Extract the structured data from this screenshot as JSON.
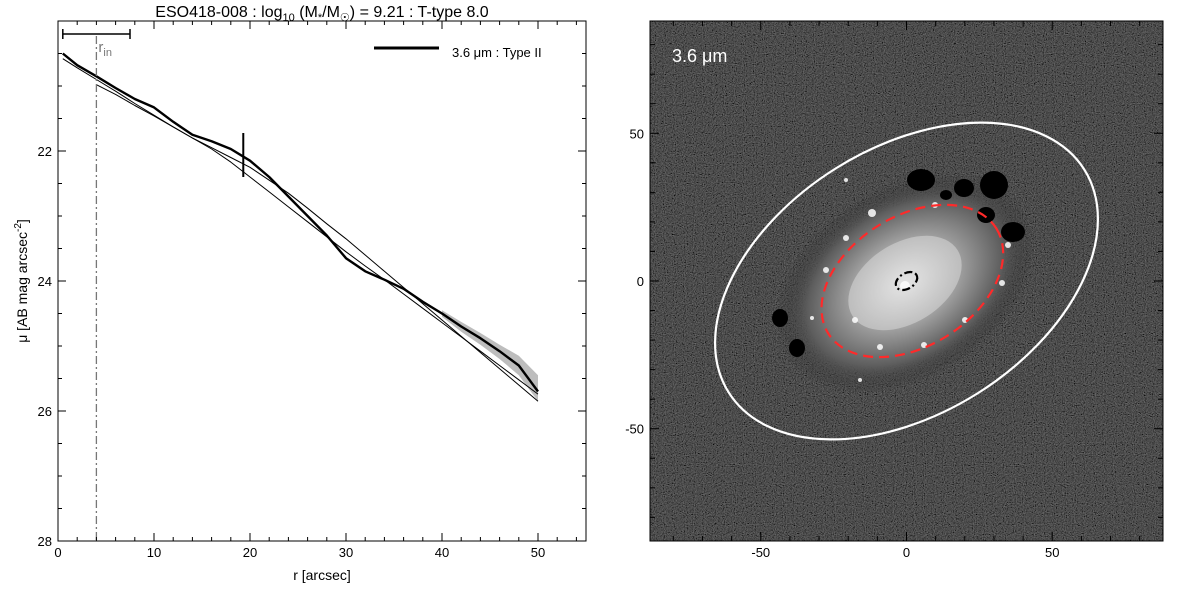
{
  "chart_data": [
    {
      "type": "line",
      "title": {
        "galaxy": "ESO418-008 : log",
        "sub10": "10",
        "mass_open": " (M",
        "mass_sub": "*",
        "slash": "/M",
        "sun_sub": "☉",
        "rest": ") = 9.21 : T-type 8.0"
      },
      "xlabel": "r [arcsec]",
      "ylabel": {
        "main": "μ [AB mag arcsec",
        "sup": "-2",
        "close": "]"
      },
      "xlim": [
        0,
        55
      ],
      "ylim": [
        28,
        20.0
      ],
      "y_inverted": true,
      "x_ticks": [
        0,
        10,
        20,
        30,
        40,
        50
      ],
      "y_ticks": [
        22,
        24,
        26,
        28
      ],
      "legend": {
        "label": "3.6 μm : Type II",
        "placement": "top-right"
      },
      "r_in": {
        "label": "r",
        "sub": "in",
        "value": 4.0,
        "bar_range": [
          0.5,
          7.5
        ]
      },
      "break_radius": 19.3,
      "series": [
        {
          "x": [
            0.5,
            2,
            4,
            6,
            8,
            10,
            12,
            14,
            16,
            18,
            20,
            22,
            24,
            26,
            28,
            30,
            32,
            34,
            36,
            38,
            40,
            42,
            44,
            46,
            48,
            50
          ],
          "y": [
            20.5,
            20.68,
            20.85,
            21.03,
            21.2,
            21.33,
            21.55,
            21.75,
            21.85,
            21.97,
            22.15,
            22.4,
            22.7,
            23.0,
            23.3,
            23.65,
            23.85,
            23.98,
            24.12,
            24.32,
            24.5,
            24.7,
            24.88,
            25.08,
            25.3,
            25.7
          ]
        },
        {
          "x": [
            0.5,
            2,
            4,
            6,
            8,
            10,
            12,
            14,
            16,
            18,
            20,
            22,
            24,
            26,
            28,
            30,
            32,
            34,
            36,
            38,
            40,
            42,
            44,
            46,
            48,
            50
          ],
          "y": [
            20.58,
            20.72,
            20.9,
            21.08,
            21.27,
            21.45,
            21.63,
            21.8,
            21.95,
            22.1,
            22.25,
            22.45,
            22.65,
            22.88,
            23.12,
            23.35,
            23.6,
            23.85,
            24.1,
            24.35,
            24.6,
            24.85,
            25.1,
            25.35,
            25.6,
            25.85
          ]
        },
        {
          "x": [
            4,
            6,
            8,
            10,
            12,
            14,
            16,
            18,
            20,
            22,
            24,
            26,
            28,
            30,
            32,
            34,
            36,
            38,
            40,
            42,
            44,
            46,
            48,
            50
          ],
          "y": [
            20.98,
            21.13,
            21.3,
            21.46,
            21.63,
            21.8,
            21.97,
            22.17,
            22.4,
            22.63,
            22.86,
            23.09,
            23.32,
            23.55,
            23.77,
            23.98,
            24.2,
            24.42,
            24.64,
            24.86,
            25.08,
            25.3,
            25.52,
            25.74
          ]
        }
      ],
      "uncertainty_band": {
        "x": [
          40,
          42,
          44,
          46,
          48,
          50
        ],
        "lower": [
          24.45,
          24.63,
          24.8,
          24.98,
          25.15,
          25.45
        ],
        "upper": [
          24.55,
          24.78,
          24.98,
          25.2,
          25.45,
          25.85
        ]
      }
    },
    {
      "type": "image",
      "label": "3.6 μm",
      "xlim": [
        -88,
        88
      ],
      "ylim": [
        -88,
        88
      ],
      "x_ticks": [
        -50,
        0,
        50
      ],
      "y_ticks": [
        -50,
        0,
        50
      ],
      "outer_ellipse": {
        "center": [
          0,
          0
        ],
        "semi_major": 72,
        "semi_minor": 45,
        "angle_deg": 32,
        "color": "#ffffff"
      },
      "middle_ellipse": {
        "center": [
          2,
          0
        ],
        "semi_major": 34,
        "semi_minor": 22,
        "angle_deg": 32,
        "color": "#ff2a2a"
      },
      "inner_ellipse": {
        "center": [
          0,
          0
        ],
        "semi_major": 4,
        "semi_minor": 2.6,
        "angle_deg": 32,
        "color": "#000000"
      }
    }
  ]
}
